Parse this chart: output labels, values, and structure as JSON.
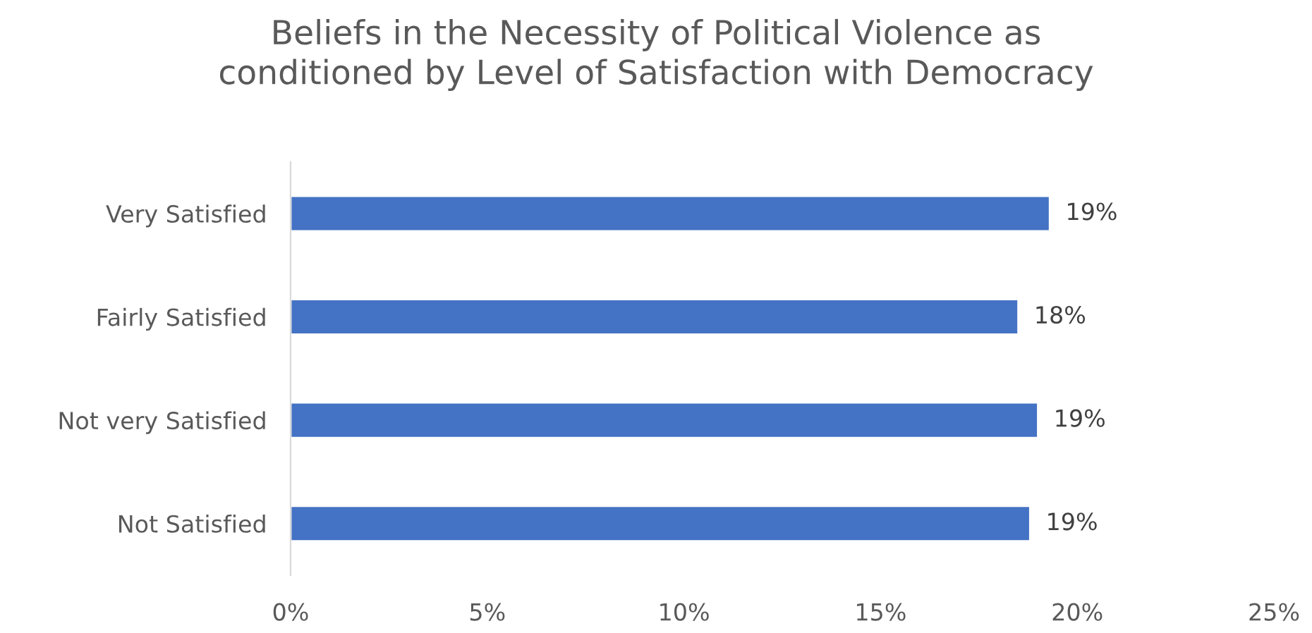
{
  "chart_data": {
    "type": "bar",
    "orientation": "horizontal",
    "title": "Beliefs in the Necessity of Political Violence as\nconditioned by Level of Satisfaction with Democracy",
    "categories": [
      "Very Satisfied",
      "Fairly Satisfied",
      "Not very Satisfied",
      "Not Satisfied"
    ],
    "values": [
      19.3,
      18.5,
      19.0,
      18.8
    ],
    "value_labels": [
      "19%",
      "18%",
      "19%",
      "19%"
    ],
    "color": "#4472c4",
    "xlim": [
      0,
      25
    ],
    "xticks": [
      {
        "value": 0,
        "label": "0%"
      },
      {
        "value": 5,
        "label": "5%"
      },
      {
        "value": 10,
        "label": "10%"
      },
      {
        "value": 15,
        "label": "15%"
      },
      {
        "value": 20,
        "label": "20%"
      },
      {
        "value": 25,
        "label": "25%"
      }
    ],
    "grid": false,
    "legend": false
  }
}
